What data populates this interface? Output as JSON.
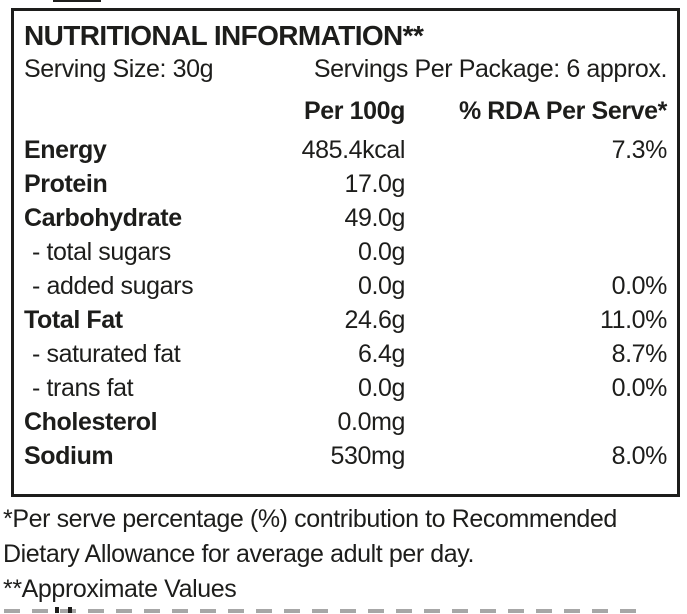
{
  "label": {
    "title": "NUTRITIONAL INFORMATION**",
    "serving_size": "Serving Size: 30g",
    "servings_per_package": "Servings Per Package: 6 approx.",
    "columns": {
      "per_100g": "Per 100g",
      "rda_per_serve": "% RDA Per Serve*"
    },
    "rows": [
      {
        "name": "Energy",
        "per_100g": "485.4kcal",
        "rda_per_serve": "7.3%"
      },
      {
        "name": "Protein",
        "per_100g": "17.0g",
        "rda_per_serve": ""
      },
      {
        "name": "Carbohydrate",
        "per_100g": "49.0g",
        "rda_per_serve": ""
      },
      {
        "name": "- total sugars",
        "per_100g": "0.0g",
        "rda_per_serve": ""
      },
      {
        "name": "- added sugars",
        "per_100g": "0.0g",
        "rda_per_serve": "0.0%"
      },
      {
        "name": "Total Fat",
        "per_100g": "24.6g",
        "rda_per_serve": "11.0%"
      },
      {
        "name": "- saturated fat",
        "per_100g": "6.4g",
        "rda_per_serve": "8.7%"
      },
      {
        "name": "- trans fat",
        "per_100g": "0.0g",
        "rda_per_serve": "0.0%"
      },
      {
        "name": "Cholesterol",
        "per_100g": "0.0mg",
        "rda_per_serve": ""
      },
      {
        "name": "Sodium",
        "per_100g": "530mg",
        "rda_per_serve": "8.0%"
      }
    ],
    "footnotes": [
      "*Per serve percentage (%) contribution to Recommended",
      "Dietary Allowance for average adult per day.",
      "**Approximate Values"
    ]
  },
  "colors": {
    "text": "#1d1d1b",
    "border": "#1d1d1b",
    "background": "#ffffff"
  }
}
